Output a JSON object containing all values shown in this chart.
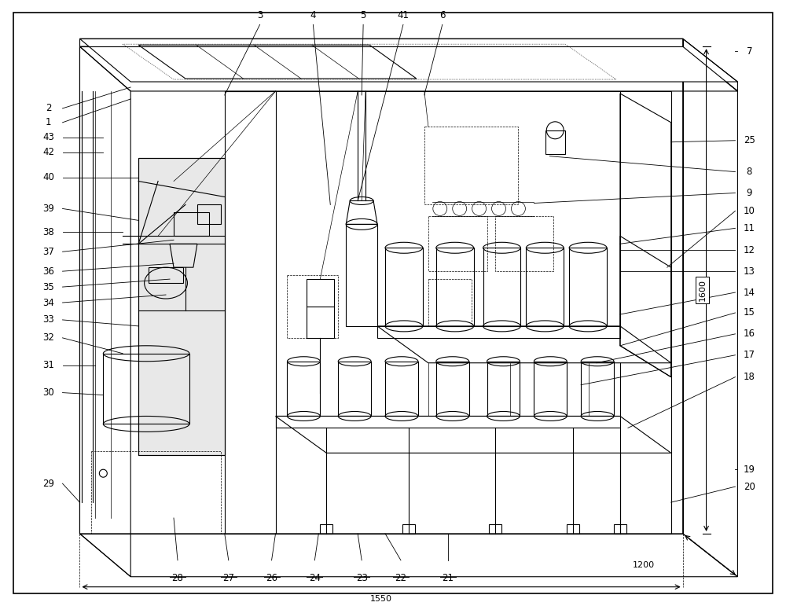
{
  "fig_width": 10.0,
  "fig_height": 7.71,
  "dpi": 100,
  "bg_color": "#ffffff",
  "lc": "#000000",
  "lw": 0.8,
  "tlw": 0.5,
  "fs": 8.5,
  "fs_dim": 8
}
